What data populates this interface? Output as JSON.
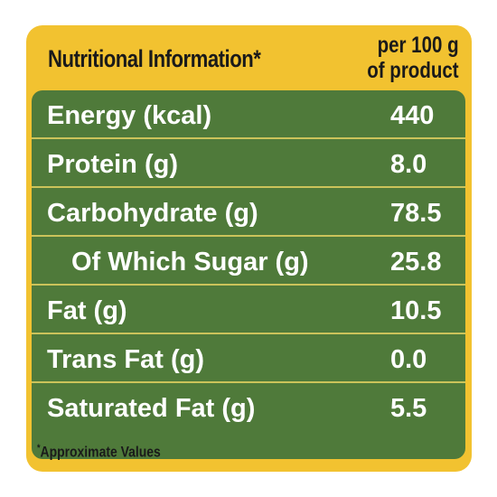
{
  "header": {
    "title": "Nutritional Information*",
    "per_line1": "per 100 g",
    "per_line2": "of product"
  },
  "rows": [
    {
      "label": "Energy (kcal)",
      "value": "440"
    },
    {
      "label": "Protein (g)",
      "value": "8.0"
    },
    {
      "label": "Carbohydrate (g)",
      "value": "78.5"
    },
    {
      "label": "Of Which Sugar (g)",
      "value": "25.8"
    },
    {
      "label": "Fat (g)",
      "value": "10.5"
    },
    {
      "label": "Trans Fat (g)",
      "value": "0.0"
    },
    {
      "label": "Saturated Fat (g)",
      "value": "5.5"
    }
  ],
  "footnote": {
    "marker": "*",
    "text": "Approximate Values"
  },
  "colors": {
    "panel": "#f2c230",
    "table": "#4f7a3a",
    "divider": "#cbc35a"
  }
}
